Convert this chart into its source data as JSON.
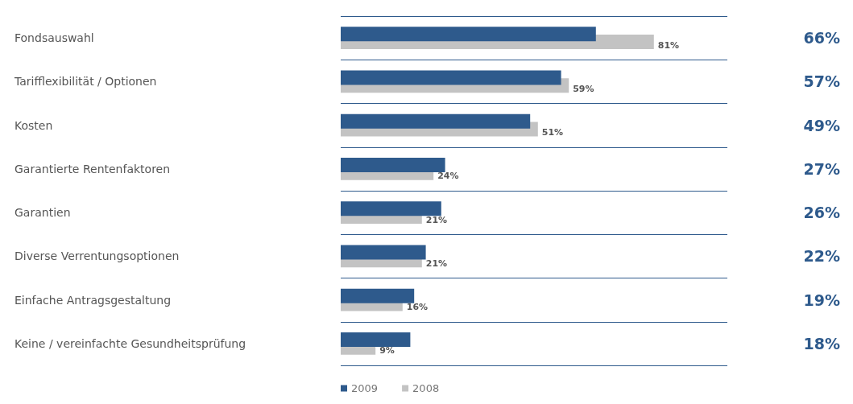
{
  "chart_data": {
    "type": "bar",
    "orientation": "horizontal",
    "categories": [
      "Fondsauswahl",
      "Tarifflexibilität / Optionen",
      "Kosten",
      "Garantierte Rentenfaktoren",
      "Garantien",
      "Diverse Verrentungsoptionen",
      "Einfache Antragsgestaltung",
      "Keine / vereinfachte Gesundheitsprüfung"
    ],
    "series": [
      {
        "name": "2009",
        "color": "#2e5a8c",
        "values": [
          66,
          57,
          49,
          27,
          26,
          22,
          19,
          18
        ],
        "value_labels": [
          "66%",
          "57%",
          "49%",
          "27%",
          "26%",
          "22%",
          "19%",
          "18%"
        ]
      },
      {
        "name": "2008",
        "color": "#c3c3c3",
        "values": [
          81,
          59,
          51,
          24,
          21,
          21,
          16,
          9
        ],
        "value_labels": [
          "81%",
          "59%",
          "51%",
          "24%",
          "21%",
          "21%",
          "16%",
          "9%"
        ]
      }
    ],
    "grid": "y",
    "legend": "bottom"
  }
}
